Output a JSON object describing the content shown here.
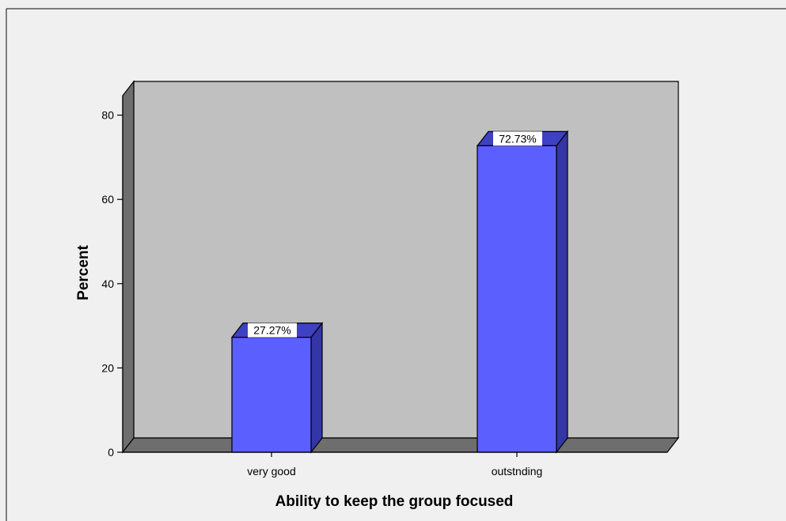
{
  "chart_data": {
    "type": "bar",
    "categories": [
      "very good",
      "outstnding"
    ],
    "values": [
      27.27,
      72.73
    ],
    "data_labels": [
      "27.27%",
      "72.73%"
    ],
    "xlabel": "Ability to keep the group focused",
    "ylabel": "Percent",
    "ylim": [
      0,
      85
    ],
    "yticks": [
      0,
      20,
      40,
      60,
      80
    ],
    "ytick_labels": [
      "0",
      "20",
      "40",
      "60",
      "80"
    ],
    "grid": false,
    "legend": "none",
    "three_d": true
  },
  "colors": {
    "background": "#f0f0f0",
    "plot_back_wall": "#c0c0c0",
    "plot_side_wall": "#6e6e6e",
    "bar_front": "#5b5ffd",
    "bar_side": "#3436a6",
    "bar_top": "#3e41c0",
    "label_box": "#ffffff",
    "outline": "#000000"
  }
}
